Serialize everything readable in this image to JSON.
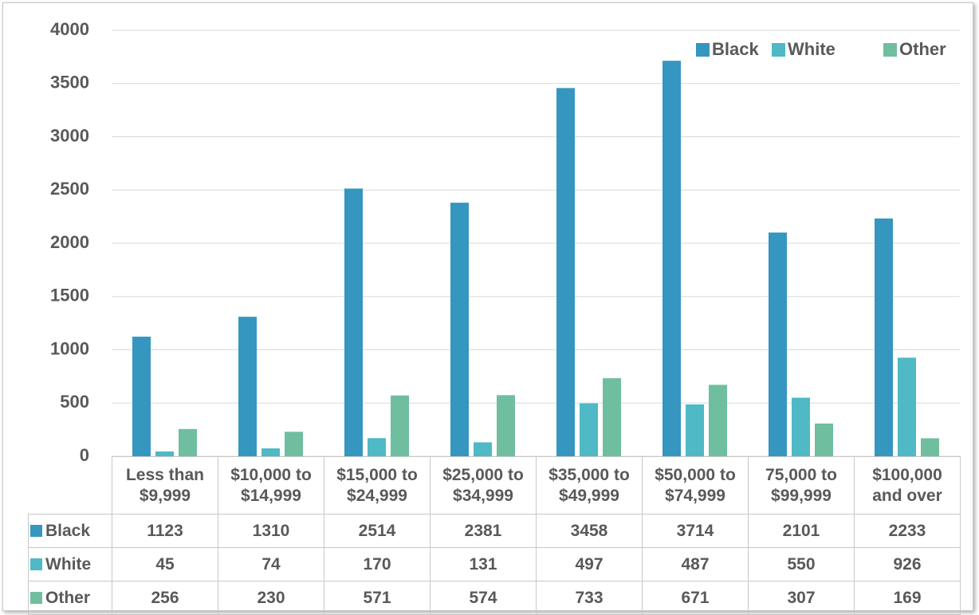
{
  "chart_data": {
    "type": "bar",
    "categories": [
      "Less than $9,999",
      "$10,000 to $14,999",
      "$15,000 to $24,999",
      "$25,000 to $34,999",
      "$35,000 to $49,999",
      "$50,000 to $74,999",
      "75,000 to $99,999",
      "$100,000 and over"
    ],
    "series": [
      {
        "name": "Black",
        "color": "#3596c0",
        "values": [
          1123,
          1310,
          2514,
          2381,
          3458,
          3714,
          2101,
          2233
        ]
      },
      {
        "name": "White",
        "color": "#4fb9c5",
        "values": [
          45,
          74,
          170,
          131,
          497,
          487,
          550,
          926
        ]
      },
      {
        "name": "Other",
        "color": "#6fbea0",
        "values": [
          256,
          230,
          571,
          574,
          733,
          671,
          307,
          169
        ]
      }
    ],
    "ylim": [
      0,
      4000
    ],
    "yticks": [
      0,
      500,
      1000,
      1500,
      2000,
      2500,
      3000,
      3500,
      4000
    ],
    "grid": true,
    "legend": "top-right",
    "data_table": true
  }
}
